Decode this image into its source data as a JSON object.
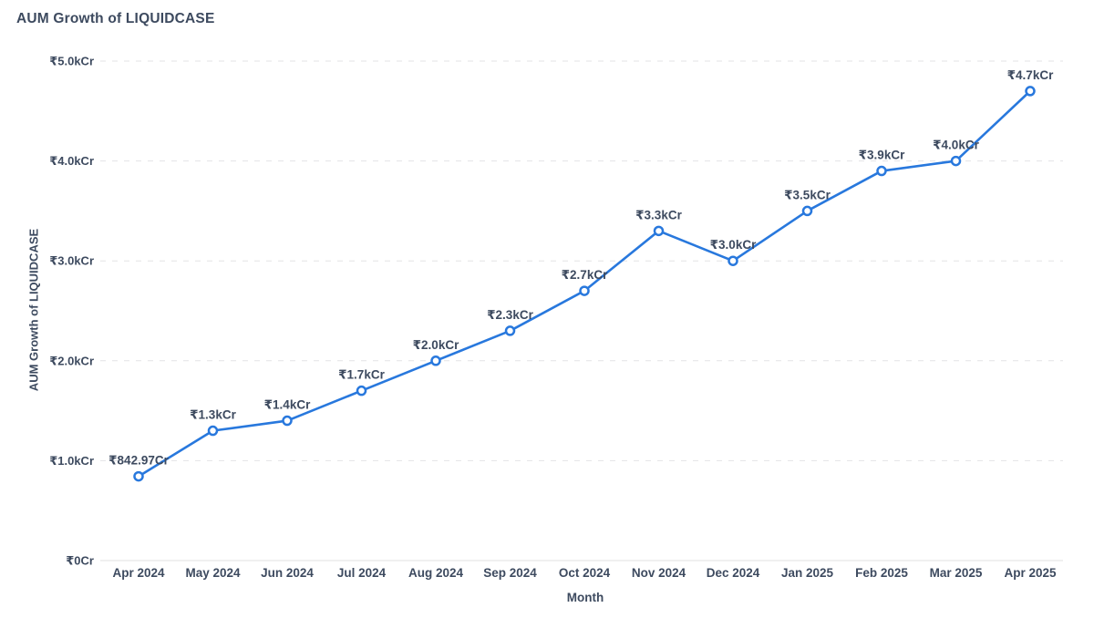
{
  "chart_data": {
    "type": "line",
    "title": "AUM Growth of LIQUIDCASE",
    "xlabel": "Month",
    "ylabel": "AUM Growth of LIQUIDCASE",
    "categories": [
      "Apr 2024",
      "May 2024",
      "Jun 2024",
      "Jul 2024",
      "Aug 2024",
      "Sep 2024",
      "Oct 2024",
      "Nov 2024",
      "Dec 2024",
      "Jan 2025",
      "Feb 2025",
      "Mar 2025",
      "Apr 2025"
    ],
    "series": [
      {
        "name": "AUM Growth of LIQUIDCASE",
        "values": [
          842.97,
          1300,
          1400,
          1700,
          2000,
          2300,
          2700,
          3300,
          3000,
          3500,
          3900,
          4000,
          4700
        ],
        "point_labels": [
          "₹842.97Cr",
          "₹1.3kCr",
          "₹1.4kCr",
          "₹1.7kCr",
          "₹2.0kCr",
          "₹2.3kCr",
          "₹2.7kCr",
          "₹3.3kCr",
          "₹3.0kCr",
          "₹3.5kCr",
          "₹3.9kCr",
          "₹4.0kCr",
          "₹4.7kCr"
        ]
      }
    ],
    "y_ticks": [
      {
        "value": 0,
        "label": "₹0Cr"
      },
      {
        "value": 1000,
        "label": "₹1.0kCr"
      },
      {
        "value": 2000,
        "label": "₹2.0kCr"
      },
      {
        "value": 3000,
        "label": "₹3.0kCr"
      },
      {
        "value": 4000,
        "label": "₹4.0kCr"
      },
      {
        "value": 5000,
        "label": "₹5.0kCr"
      }
    ],
    "ylim": [
      0,
      5000
    ],
    "grid": "horizontal-dashed",
    "legend": "none",
    "colors": {
      "line": "#2878dd",
      "marker_fill": "#ffffff",
      "grid": "#e3e3e6",
      "axis_line": "#e2e2e2",
      "text": "#3d4a5f"
    }
  }
}
